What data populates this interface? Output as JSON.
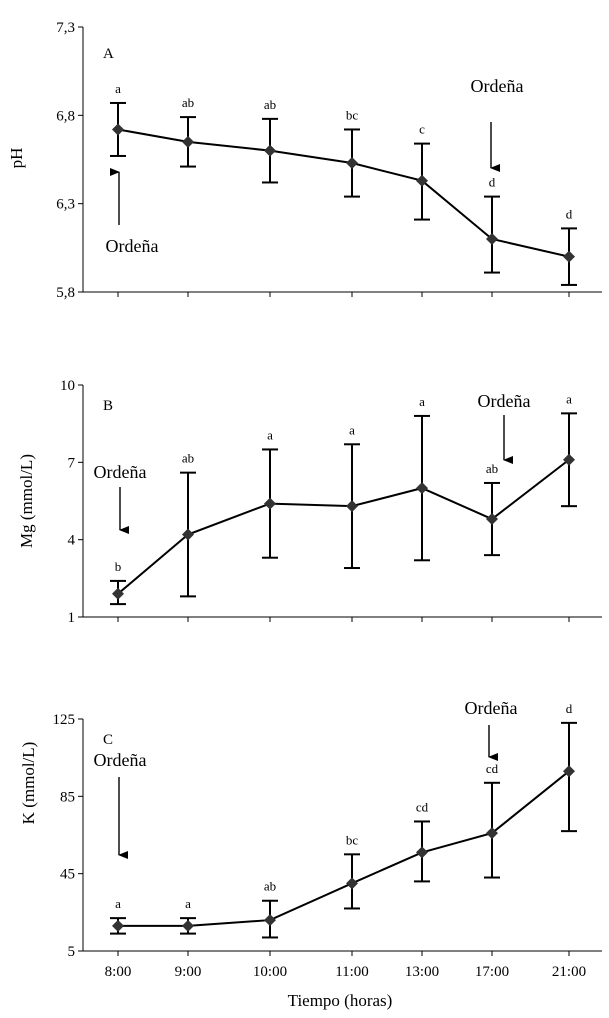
{
  "colors": {
    "ink": "#000000",
    "marker": "#333333",
    "background": "#ffffff"
  },
  "chart_data": [
    {
      "type": "line",
      "panel_label": "A",
      "ylabel": "pH",
      "xlabel": "",
      "categories": [
        "8:00",
        "9:00",
        "10:00",
        "11:00",
        "13:00",
        "17:00",
        "21:00"
      ],
      "ylim": [
        5.8,
        7.3
      ],
      "yticks": [
        "5,8",
        "6,3",
        "6,8",
        "7,3"
      ],
      "series": [
        {
          "values": [
            6.72,
            6.65,
            6.6,
            6.53,
            6.43,
            6.1,
            6.0
          ],
          "err_upper": [
            6.87,
            6.79,
            6.78,
            6.72,
            6.64,
            6.34,
            6.16
          ],
          "err_lower": [
            6.57,
            6.51,
            6.42,
            6.34,
            6.21,
            5.91,
            5.84
          ],
          "letters": [
            "a",
            "ab",
            "ab",
            "bc",
            "c",
            "d",
            "d"
          ]
        }
      ],
      "annotations": [
        {
          "text": "Ordeña",
          "category": "8:00",
          "direction": "up"
        },
        {
          "text": "Ordeña",
          "category": "17:00",
          "direction": "down"
        }
      ]
    },
    {
      "type": "line",
      "panel_label": "B",
      "ylabel": "Mg (mmol/L)",
      "xlabel": "",
      "categories": [
        "8:00",
        "9:00",
        "10:00",
        "11:00",
        "13:00",
        "17:00",
        "21:00"
      ],
      "ylim": [
        1,
        10
      ],
      "yticks": [
        "1",
        "4",
        "7",
        "10"
      ],
      "series": [
        {
          "values": [
            1.9,
            4.2,
            5.4,
            5.3,
            6.0,
            4.8,
            7.1
          ],
          "err_upper": [
            2.4,
            6.6,
            7.5,
            7.7,
            8.8,
            6.2,
            8.9
          ],
          "err_lower": [
            1.5,
            1.8,
            3.3,
            2.9,
            3.2,
            3.4,
            5.3
          ],
          "letters": [
            "b",
            "ab",
            "a",
            "a",
            "a",
            "ab",
            "a"
          ]
        }
      ],
      "annotations": [
        {
          "text": "Ordeña",
          "category": "8:00",
          "direction": "down"
        },
        {
          "text": "Ordeña",
          "category": "17:00",
          "direction": "down"
        }
      ]
    },
    {
      "type": "line",
      "panel_label": "C",
      "ylabel": "K (mmol/L)",
      "xlabel": "Tiempo (horas)",
      "categories": [
        "8:00",
        "9:00",
        "10:00",
        "11:00",
        "13:00",
        "17:00",
        "21:00"
      ],
      "ylim": [
        5,
        125
      ],
      "yticks": [
        "5",
        "45",
        "85",
        "125"
      ],
      "series": [
        {
          "values": [
            18,
            18,
            21,
            40,
            56,
            66,
            98
          ],
          "err_upper": [
            22,
            22,
            31,
            55,
            72,
            92,
            123
          ],
          "err_lower": [
            14,
            14,
            12,
            27,
            41,
            43,
            67
          ],
          "letters": [
            "a",
            "a",
            "ab",
            "bc",
            "cd",
            "cd",
            "d"
          ]
        }
      ],
      "annotations": [
        {
          "text": "Ordeña",
          "category": "8:00",
          "direction": "down"
        },
        {
          "text": "Ordeña",
          "category": "17:00",
          "direction": "down"
        }
      ]
    }
  ]
}
